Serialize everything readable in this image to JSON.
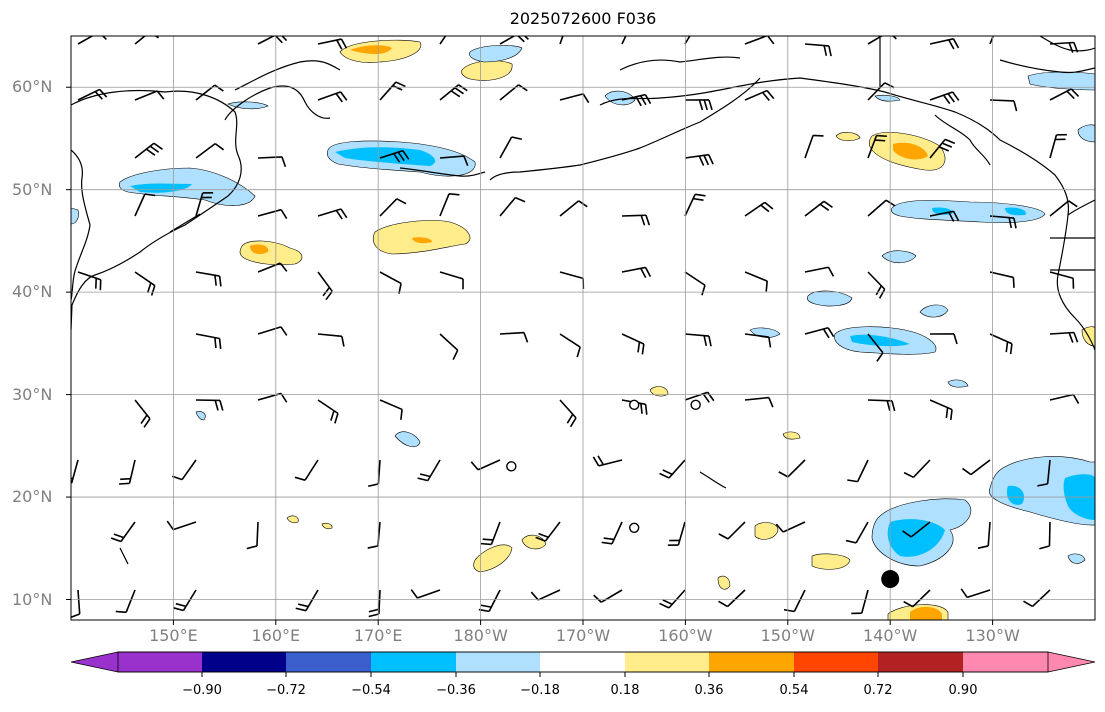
{
  "title": "2025072600 F036",
  "lat_labels": [
    "60°N",
    "50°N",
    "40°N",
    "30°N",
    "20°N",
    "10°N"
  ],
  "lon_labels": [
    "150°E",
    "160°E",
    "170°E",
    "180°W",
    "170°W",
    "160°W",
    "150°W",
    "140°W",
    "130°W"
  ],
  "colorbar": {
    "labels": [
      "−0.90",
      "−0.72",
      "−0.54",
      "−0.36",
      "−0.18",
      "0.18",
      "0.36",
      "0.54",
      "0.72",
      "0.90"
    ],
    "colors": [
      "#9932CC",
      "#00008B",
      "#3A5FCD",
      "#00BFFF",
      "#B0E0FF",
      "#FFFFFF",
      "#FFEC8B",
      "#FFA500",
      "#FF4500",
      "#B22222",
      "#FF88B0"
    ]
  },
  "map": {
    "extent": {
      "lon_min": 140,
      "lon_max": 240,
      "lat_min": 8,
      "lat_max": 65
    },
    "storm_marker": {
      "lon": 220,
      "lat": 12
    },
    "calm_circles": [
      {
        "lon": 195,
        "lat": 29
      },
      {
        "lon": 201,
        "lat": 29
      },
      {
        "lon": 183,
        "lat": 23
      },
      {
        "lon": 195,
        "lat": 17
      }
    ]
  }
}
